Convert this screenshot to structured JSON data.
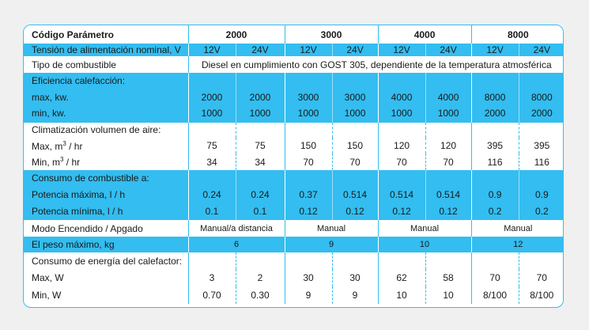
{
  "header": {
    "param": "Código Parámetro",
    "models": [
      "2000",
      "3000",
      "4000",
      "8000"
    ]
  },
  "voltage": {
    "label": "Tensión de alimentación nominal, V",
    "values": [
      "12V",
      "24V",
      "12V",
      "24V",
      "12V",
      "24V",
      "12V",
      "24V"
    ]
  },
  "fuel_type": {
    "label": "Tipo de combustible",
    "value": "Diesel en cumplimiento con GOST 305, dependiente de la temperatura atmosférica"
  },
  "efficiency": {
    "title": "Eficiencia calefacción:",
    "max_label": "max, kw.",
    "max": [
      "2000",
      "2000",
      "3000",
      "3000",
      "4000",
      "4000",
      "8000",
      "8000"
    ],
    "min_label": "min, kw.",
    "min": [
      "1000",
      "1000",
      "1000",
      "1000",
      "1000",
      "1000",
      "2000",
      "2000"
    ]
  },
  "air": {
    "title": "Climatización volumen de aire:",
    "max_label_a": "Max, m",
    "max_label_sup": "3",
    "max_label_b": " / hr",
    "max": [
      "75",
      "75",
      "150",
      "150",
      "120",
      "120",
      "395",
      "395"
    ],
    "min_label_a": "Min, m",
    "min_label_sup": "3",
    "min_label_b": " / hr",
    "min": [
      "34",
      "34",
      "70",
      "70",
      "70",
      "70",
      "116",
      "116"
    ]
  },
  "fuel": {
    "title": "Consumo de combustible a:",
    "max_label": "Potencia máxima, l / h",
    "max": [
      "0.24",
      "0.24",
      "0.37",
      "0.514",
      "0.514",
      "0.514",
      "0.9",
      "0.9"
    ],
    "min_label": "Potencia mínima, l / h",
    "min": [
      "0.1",
      "0.1",
      "0.12",
      "0.12",
      "0.12",
      "0.12",
      "0.2",
      "0.2"
    ]
  },
  "mode": {
    "label": "Modo Encendido / Apgado",
    "values": [
      "Manual/a distancia",
      "Manual",
      "Manual",
      "Manual"
    ]
  },
  "weight": {
    "label": "El peso máximo, kg",
    "values": [
      "6",
      "9",
      "10",
      "12"
    ]
  },
  "power": {
    "title": "Consumo de energía del calefactor:",
    "max_label": "Max, W",
    "max": [
      "3",
      "2",
      "30",
      "30",
      "62",
      "58",
      "70",
      "70"
    ],
    "min_label": "Min, W",
    "min": [
      "0.70",
      "0.30",
      "9",
      "9",
      "10",
      "10",
      "8/100",
      "8/100"
    ]
  }
}
